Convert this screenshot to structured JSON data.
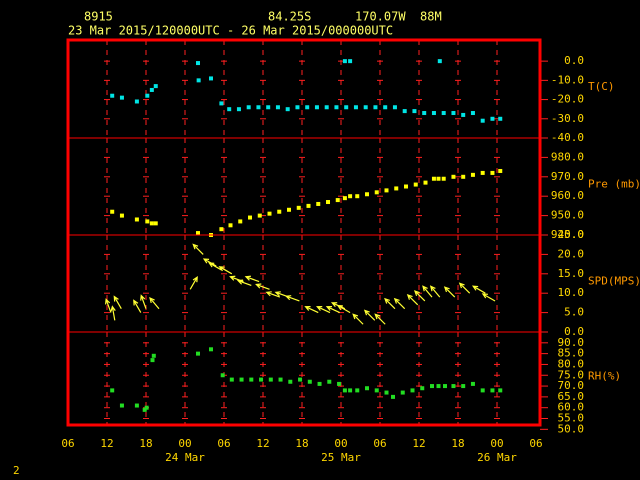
{
  "header": {
    "station": "8915",
    "lat": "84.25S",
    "lon": "170.07W",
    "elev": "88M",
    "period": "23 Mar 2015/120000UTC - 26 Mar 2015/000000UTC"
  },
  "page_number": "2",
  "chart_data": [
    {
      "type": "scatter",
      "ylabel": "T(C)",
      "color": "#00e5e5",
      "ylim": [
        -40,
        11
      ],
      "yticks": [
        {
          "value": 0,
          "label": "0.0"
        },
        {
          "value": -10,
          "label": "-10.0"
        },
        {
          "value": -20,
          "label": "-20.0"
        },
        {
          "value": -30,
          "label": "-30.0"
        },
        {
          "value": -40,
          "label": "-40.0"
        }
      ],
      "x": [
        12.8,
        14.3,
        16.6,
        18.2,
        18.9,
        19.5,
        26,
        26.1,
        28,
        29.6,
        30.8,
        32.3,
        33.8,
        35.3,
        36.8,
        38.3,
        39.8,
        41.3,
        42.8,
        44.3,
        45.8,
        47.3,
        48.8,
        50.3,
        51.8,
        53.3,
        54.8,
        56.3,
        57.8,
        59.3,
        60.8,
        62.3,
        63.8,
        65.3,
        66.8,
        68.3,
        69.8,
        71.3,
        72.5,
        48.6,
        49.4,
        63.2
      ],
      "values": [
        -18,
        -19,
        -21,
        -18,
        -15,
        -13,
        -1,
        -10,
        -9,
        -22,
        -25,
        -25,
        -24,
        -24,
        -24,
        -24,
        -25,
        -24,
        -24,
        -24,
        -24,
        -24,
        -24,
        -24,
        -24,
        -24,
        -24,
        -24,
        -26,
        -26,
        -27,
        -27,
        -27,
        -27,
        -28,
        -27,
        -31,
        -30,
        -30,
        0,
        0,
        0
      ]
    },
    {
      "type": "scatter",
      "ylabel": "Pre (mb)",
      "color": "#ffff00",
      "ylim": [
        940,
        990
      ],
      "yticks": [
        {
          "value": 980,
          "label": "980.0"
        },
        {
          "value": 970,
          "label": "970.0"
        },
        {
          "value": 960,
          "label": "960.0"
        },
        {
          "value": 950,
          "label": "950.0"
        },
        {
          "value": 940,
          "label": "940.0"
        }
      ],
      "x": [
        12.8,
        14.3,
        16.6,
        18.2,
        18.9,
        19.5,
        26,
        28,
        29.6,
        31,
        32.5,
        34,
        35.5,
        37,
        38.5,
        40,
        41.5,
        43,
        44.5,
        46,
        47.5,
        48.6,
        49.4,
        50.5,
        52,
        53.5,
        55,
        56.5,
        58,
        59.5,
        61,
        62.3,
        63,
        63.8,
        65.3,
        66.8,
        68.3,
        69.8,
        71.3,
        72.5
      ],
      "values": [
        952,
        950,
        948,
        947,
        946,
        946,
        941,
        940,
        943,
        945,
        947,
        949,
        950,
        951,
        952,
        953,
        954,
        955,
        956,
        957,
        958,
        959,
        960,
        960,
        961,
        962,
        963,
        964,
        965,
        966,
        967,
        969,
        969,
        969,
        970,
        970,
        971,
        972,
        972,
        973
      ]
    },
    {
      "type": "vector",
      "ylabel": "SPD(MPS)",
      "color": "#ffff33",
      "ylim": [
        0,
        25
      ],
      "yticks": [
        {
          "value": 25,
          "label": "25.0"
        },
        {
          "value": 20,
          "label": "20.0"
        },
        {
          "value": 15,
          "label": "15.0"
        },
        {
          "value": 10,
          "label": "10.0"
        },
        {
          "value": 5,
          "label": "5.0"
        },
        {
          "value": 0,
          "label": "0.0"
        }
      ],
      "x": [
        12.6,
        13.2,
        14.2,
        17.2,
        18,
        20,
        24.8,
        26.8,
        28.8,
        29.6,
        31.2,
        33,
        34.2,
        35.4,
        37,
        38.6,
        40,
        41.6,
        44.5,
        46.3,
        47.8,
        48.6,
        49.4,
        51.4,
        53.2,
        54.8,
        56.3,
        57.8,
        59.8,
        60.9,
        62,
        63.2,
        65.5,
        67.8,
        70.2,
        71.7
      ],
      "values": [
        5,
        3,
        6,
        5,
        6,
        6,
        11,
        20,
        17,
        16,
        15,
        13,
        12,
        13,
        11,
        9,
        9,
        8,
        5,
        5,
        5,
        6,
        5,
        2,
        3,
        2,
        6,
        6,
        7,
        8,
        9,
        9,
        9,
        10,
        10,
        8
      ],
      "directions": [
        340,
        350,
        330,
        330,
        340,
        320,
        30,
        315,
        300,
        300,
        300,
        290,
        290,
        290,
        290,
        290,
        290,
        290,
        295,
        295,
        295,
        295,
        300,
        315,
        315,
        315,
        315,
        315,
        315,
        315,
        320,
        320,
        315,
        315,
        300,
        300
      ]
    },
    {
      "type": "scatter",
      "ylabel": "RH(%)",
      "color": "#22dd22",
      "ylim": [
        52,
        95
      ],
      "yticks": [
        {
          "value": 90,
          "label": "90.0"
        },
        {
          "value": 85,
          "label": "85.0"
        },
        {
          "value": 80,
          "label": "80.0"
        },
        {
          "value": 75,
          "label": "75.0"
        },
        {
          "value": 70,
          "label": "70.0"
        },
        {
          "value": 65,
          "label": "65.0"
        },
        {
          "value": 60,
          "label": "60.0"
        },
        {
          "value": 55,
          "label": "55.0"
        },
        {
          "value": 50,
          "label": "50.0"
        }
      ],
      "x": [
        12.8,
        14.3,
        16.6,
        17.8,
        18.1,
        19,
        19.2,
        26,
        28,
        29.8,
        31.2,
        32.7,
        34.2,
        35.7,
        37.2,
        38.7,
        40.2,
        41.7,
        43.2,
        44.7,
        46.2,
        47.7,
        48.6,
        49.4,
        50.5,
        52,
        53.5,
        55,
        56,
        57.5,
        59,
        60.5,
        62,
        63,
        64,
        65.3,
        66.8,
        68.3,
        69.8,
        71.3,
        72.5
      ],
      "values": [
        68,
        61,
        61,
        59,
        60,
        82,
        84,
        85,
        87,
        75,
        73,
        73,
        73,
        73,
        73,
        73,
        72,
        73,
        72,
        71,
        72,
        71,
        68,
        68,
        68,
        69,
        68,
        67,
        65,
        67,
        68,
        69,
        70,
        70,
        70,
        70,
        70,
        71,
        68,
        68,
        68
      ],
      "xlim": [
        6,
        78
      ],
      "xticks": [
        {
          "value": 6,
          "label": "06"
        },
        {
          "value": 12,
          "label": "12"
        },
        {
          "value": 18,
          "label": "18"
        },
        {
          "value": 24,
          "label": "00"
        },
        {
          "value": 30,
          "label": "06"
        },
        {
          "value": 36,
          "label": "12"
        },
        {
          "value": 42,
          "label": "18"
        },
        {
          "value": 48,
          "label": "00"
        },
        {
          "value": 54,
          "label": "06"
        },
        {
          "value": 60,
          "label": "12"
        },
        {
          "value": 66,
          "label": "18"
        },
        {
          "value": 72,
          "label": "00"
        },
        {
          "value": 78,
          "label": "06"
        }
      ],
      "date_ticks": [
        {
          "value": 24,
          "label": "24 Mar"
        },
        {
          "value": 48,
          "label": "25 Mar"
        },
        {
          "value": 72,
          "label": "26 Mar"
        }
      ]
    }
  ]
}
